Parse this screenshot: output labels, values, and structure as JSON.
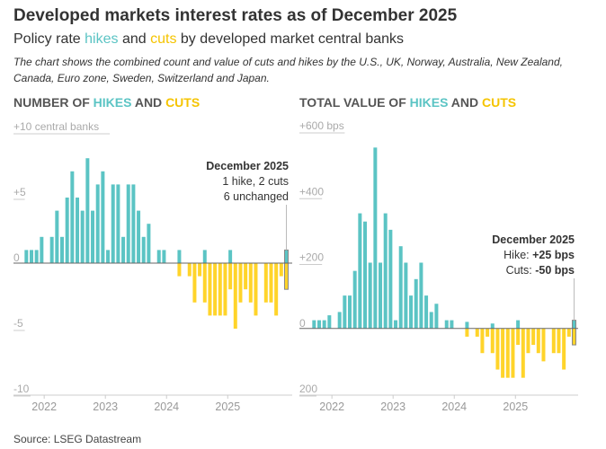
{
  "title": "Developed markets interest rates as of December 2025",
  "subtitle": {
    "prefix": "Policy rate ",
    "hikes": "hikes",
    "and": " and ",
    "cuts": "cuts",
    "suffix": " by developed market central banks"
  },
  "note": "The chart shows the combined count and value of cuts and hikes by the U.S., UK, Norway, Australia, New Zealand, Canada, Euro zone, Sweden, Switzerland and Japan.",
  "source": "Source: LSEG Datastream",
  "colors": {
    "hike": "#5bc4c4",
    "cut": "#ffd42a",
    "highlight": "#888888"
  },
  "chart_data": [
    {
      "type": "bar",
      "header": {
        "prefix": "NUMBER OF ",
        "hikes": "HIKES",
        "and": " AND ",
        "cuts": "CUTS"
      },
      "y_tick_labels": [
        "+10 central banks",
        "+5",
        "0",
        "-5",
        "-10"
      ],
      "y_ticks": [
        10,
        5,
        0,
        -5,
        -10
      ],
      "ylim": [
        -10,
        10
      ],
      "x_tick_labels": [
        "2022",
        "2023",
        "2024",
        "2025"
      ],
      "x_start": "2021-09",
      "x_end": "2025-12",
      "series": [
        {
          "name": "hikes",
          "values": [
            1,
            1,
            1,
            2,
            0,
            2,
            4,
            2,
            5,
            7,
            5,
            4,
            8,
            4,
            6,
            7,
            1,
            6,
            6,
            2,
            6,
            6,
            4,
            2,
            3,
            0,
            1,
            1,
            0,
            0,
            1,
            0,
            0,
            0,
            0,
            1,
            0,
            0,
            0,
            0,
            1,
            0,
            0,
            0,
            0,
            0,
            0,
            0,
            0,
            0,
            0,
            1
          ]
        },
        {
          "name": "cuts",
          "values": [
            0,
            0,
            0,
            0,
            0,
            0,
            0,
            0,
            0,
            0,
            0,
            0,
            0,
            0,
            0,
            0,
            0,
            0,
            0,
            0,
            0,
            0,
            0,
            0,
            0,
            0,
            0,
            0,
            0,
            0,
            -1,
            0,
            -1,
            -3,
            -1,
            -3,
            -4,
            -4,
            -4,
            -4,
            -2,
            -5,
            -3,
            -2,
            -3,
            -4,
            0,
            -3,
            -3,
            -4,
            -1,
            -2
          ]
        }
      ],
      "annotation": {
        "title": "December 2025",
        "line1": "1 hike, 2 cuts",
        "line2": "6 unchanged"
      }
    },
    {
      "type": "bar",
      "header": {
        "prefix": "TOTAL VALUE OF ",
        "hikes": "HIKES",
        "and": " AND ",
        "cuts": "CUTS"
      },
      "y_tick_labels": [
        "+600 bps",
        "+400",
        "+200",
        "0",
        "200"
      ],
      "y_ticks": [
        600,
        400,
        200,
        0,
        -200
      ],
      "ylim": [
        -200,
        600
      ],
      "x_tick_labels": [
        "2022",
        "2023",
        "2024",
        "2025"
      ],
      "x_start": "2021-09",
      "x_end": "2025-12",
      "series": [
        {
          "name": "hikes",
          "values": [
            25,
            25,
            25,
            40,
            0,
            50,
            100,
            100,
            175,
            350,
            325,
            200,
            550,
            200,
            350,
            300,
            25,
            250,
            200,
            100,
            150,
            200,
            100,
            50,
            75,
            0,
            25,
            25,
            0,
            0,
            20,
            0,
            0,
            0,
            0,
            15,
            0,
            0,
            0,
            0,
            25,
            0,
            0,
            0,
            0,
            0,
            0,
            0,
            0,
            0,
            0,
            25
          ]
        },
        {
          "name": "cuts",
          "values": [
            0,
            0,
            0,
            0,
            0,
            0,
            0,
            0,
            0,
            0,
            0,
            0,
            0,
            0,
            0,
            0,
            0,
            0,
            0,
            0,
            0,
            0,
            0,
            0,
            0,
            0,
            0,
            0,
            0,
            0,
            -25,
            0,
            -25,
            -75,
            -25,
            -75,
            -125,
            -150,
            -150,
            -150,
            -50,
            -150,
            -75,
            -50,
            -75,
            -100,
            0,
            -75,
            -75,
            -125,
            -25,
            -50
          ]
        }
      ],
      "annotation": {
        "title": "December 2025",
        "hike_label": "Hike: ",
        "hike_value": "+25 bps",
        "cut_label": "Cuts: ",
        "cut_value": "-50 bps"
      }
    }
  ]
}
